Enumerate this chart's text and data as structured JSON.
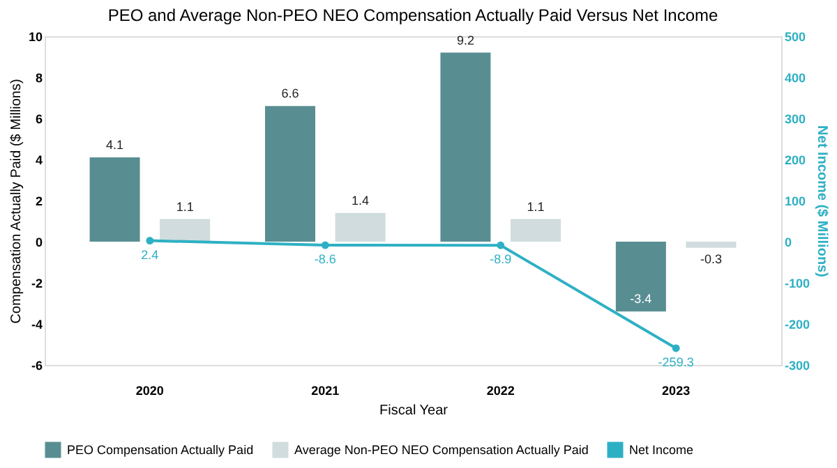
{
  "chart_data": {
    "type": "bar",
    "title": "PEO and Average Non-PEO NEO Compensation Actually Paid Versus Net Income",
    "categories": [
      "2020",
      "2021",
      "2022",
      "2023"
    ],
    "xlabel": "Fiscal Year",
    "ylabel": "Compensation Actually Paid ($ Millions)",
    "y2label": "Net Income ($ Millions)",
    "series": [
      {
        "name": "PEO Compensation Actually Paid",
        "color": "#588e92",
        "values": [
          4.1,
          6.6,
          9.2,
          -3.4
        ]
      },
      {
        "name": "Average Non-PEO NEO Compensation Actually Paid",
        "color": "#d0dcdd",
        "values": [
          1.1,
          1.4,
          1.1,
          -0.3
        ]
      },
      {
        "name": "Net Income",
        "type": "line",
        "axis": "y2",
        "color": "#2eb0c4",
        "marker": "circle",
        "values": [
          2.4,
          -8.6,
          -8.9,
          -259.3
        ]
      }
    ],
    "ylim": [
      -6,
      10
    ],
    "yticks": [
      -6,
      -4,
      -2,
      0,
      2,
      4,
      6,
      8,
      10
    ],
    "y2lim": [
      -300,
      500
    ],
    "y2ticks": [
      -300,
      -200,
      -100,
      0,
      100,
      200,
      300,
      400,
      500
    ],
    "data_labels": true,
    "grid": false,
    "legend": "bottom"
  }
}
